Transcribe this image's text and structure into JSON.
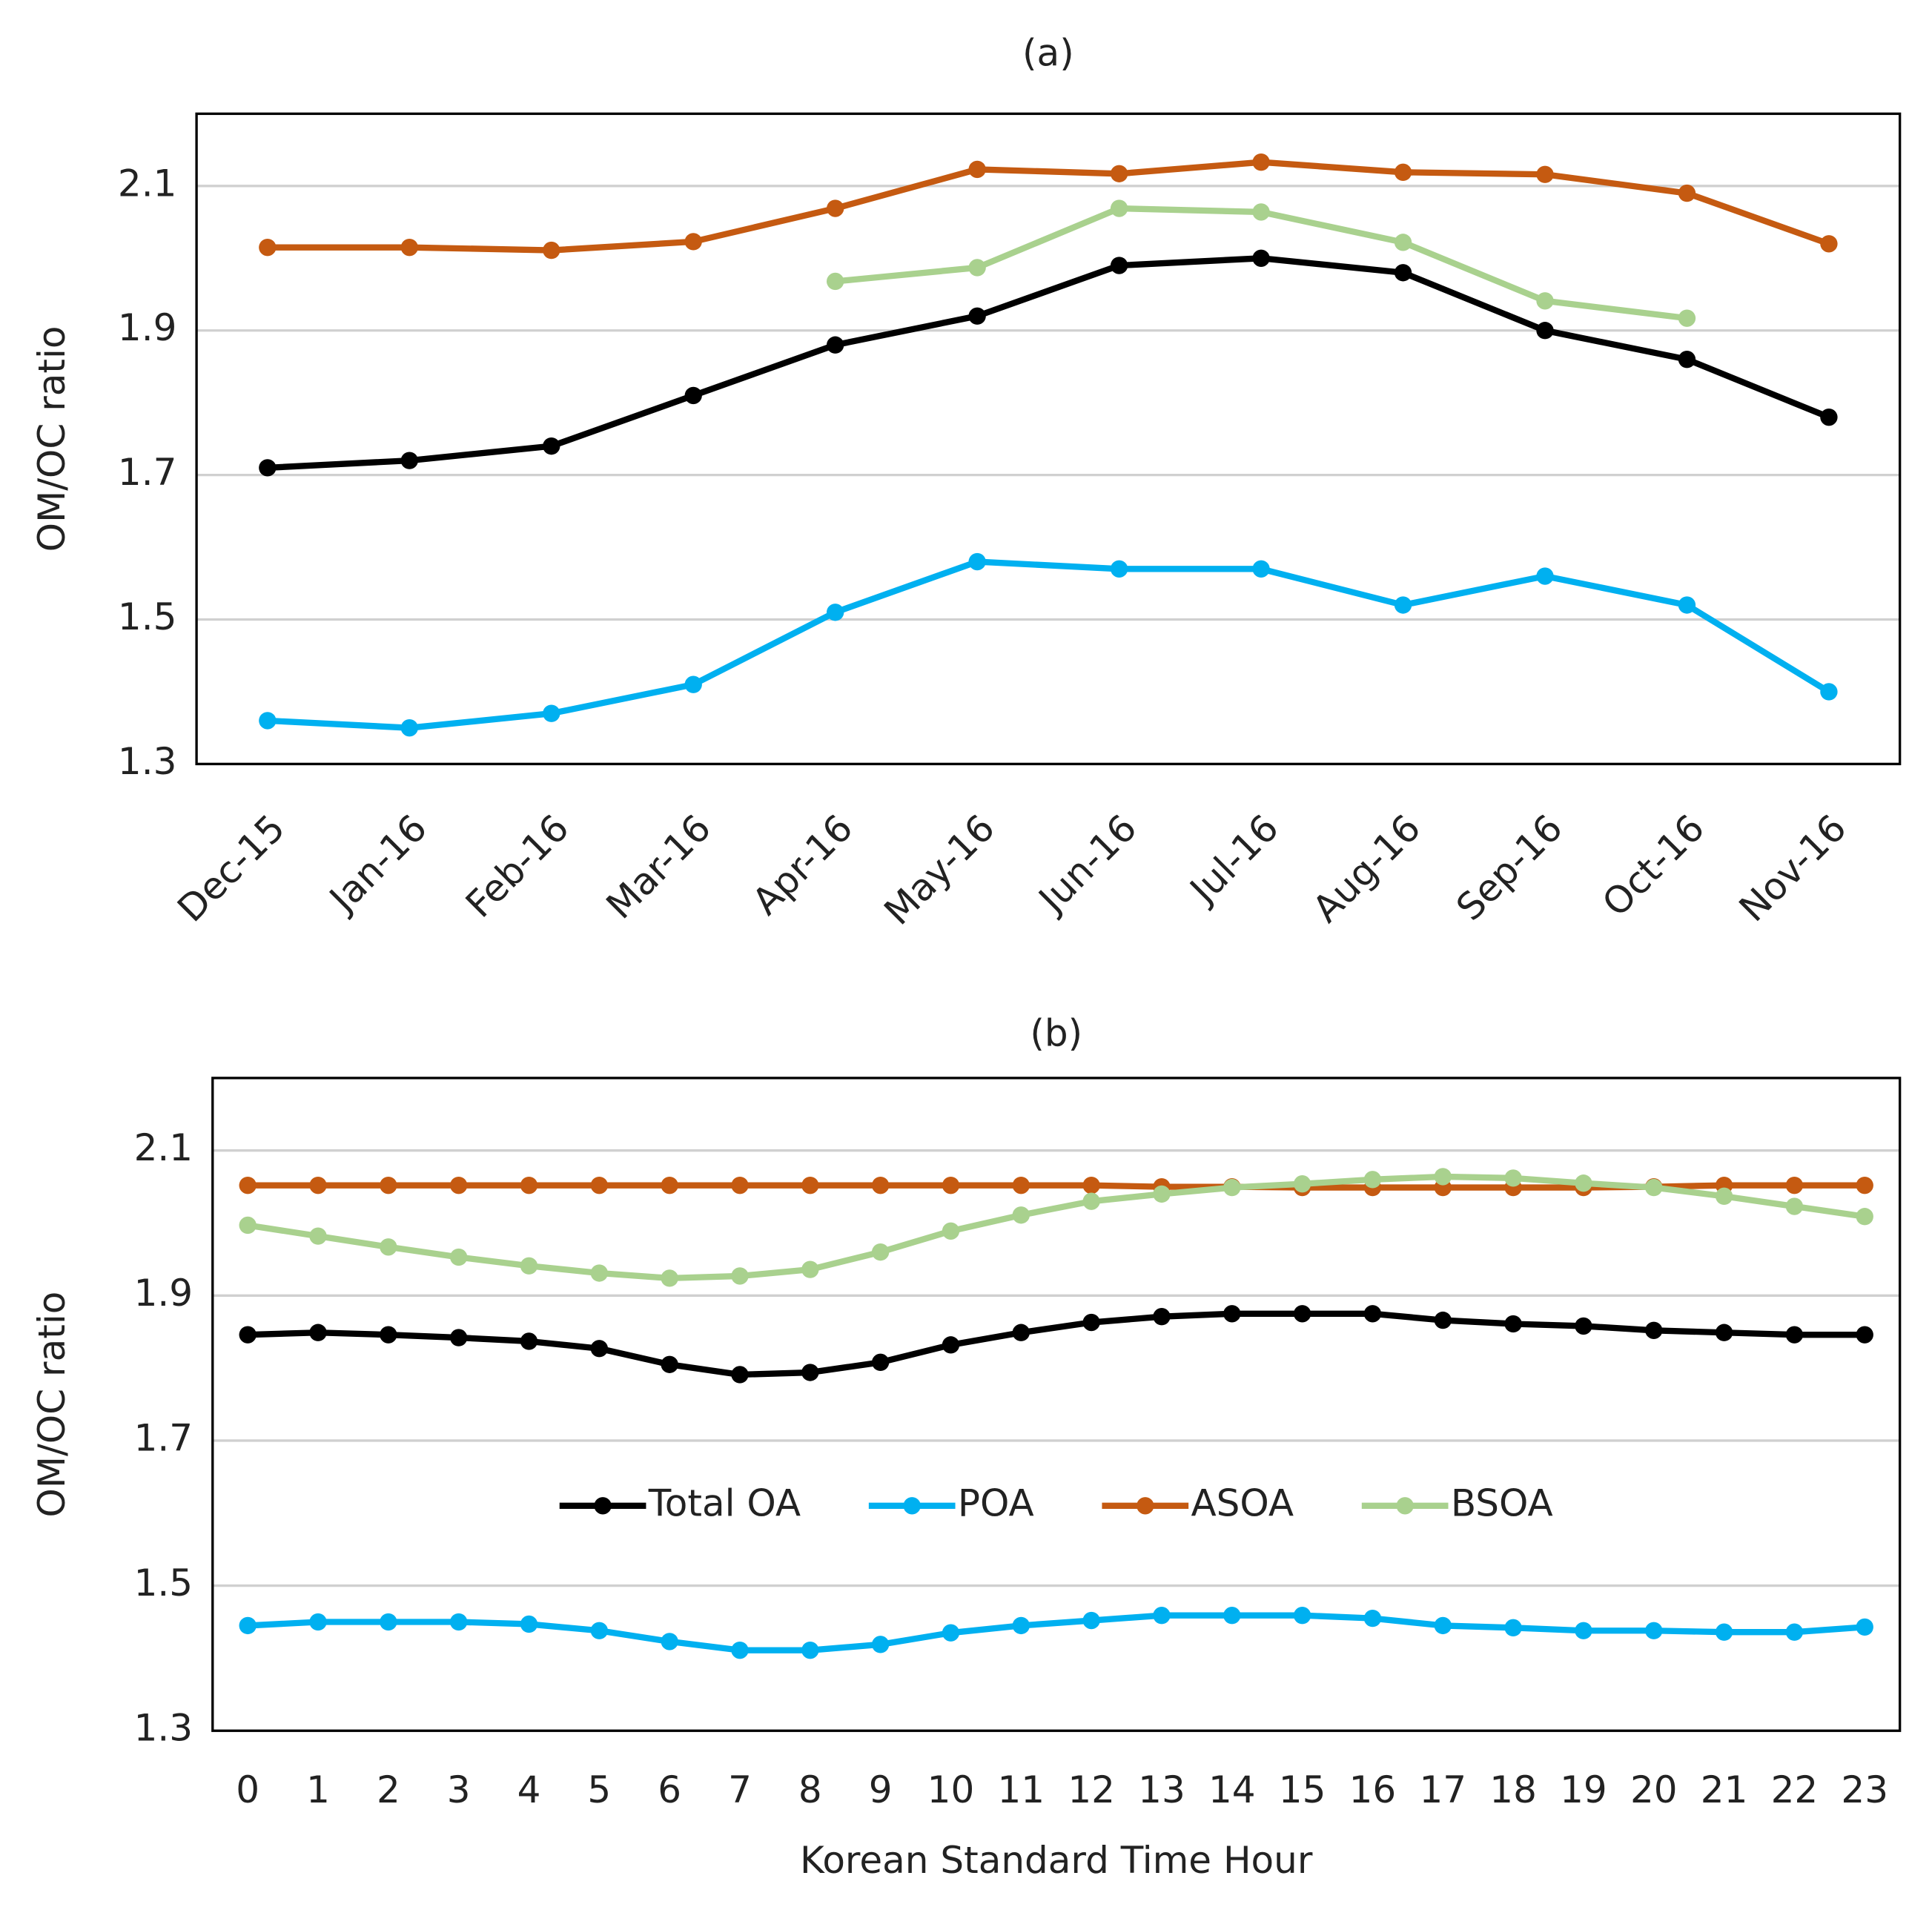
{
  "chart_data": [
    {
      "type": "line",
      "title": "(a)",
      "y_label": "OM/OC ratio",
      "xtick_rotation": 45,
      "categories": [
        "Dec-15",
        "Jan-16",
        "Feb-16",
        "Mar-16",
        "Apr-16",
        "May-16",
        "Jun-16",
        "Jul-16",
        "Aug-16",
        "Sep-16",
        "Oct-16",
        "Nov-16"
      ],
      "ylim": [
        1.3,
        2.2
      ],
      "yticks": [
        1.3,
        1.5,
        1.7,
        1.9,
        2.1
      ],
      "grid": true,
      "series": [
        {
          "color": "#000000",
          "values": [
            1.71,
            1.72,
            1.74,
            1.81,
            1.88,
            1.92,
            1.99,
            2.0,
            1.98,
            1.9,
            1.86,
            1.78
          ]
        },
        {
          "color": "#00b0f0",
          "values": [
            1.36,
            1.35,
            1.37,
            1.41,
            1.51,
            1.58,
            1.57,
            1.57,
            1.52,
            1.56,
            1.52,
            1.4
          ]
        },
        {
          "color": "#c55a11",
          "values": [
            2.015,
            2.015,
            2.011,
            2.023,
            2.069,
            2.123,
            2.117,
            2.133,
            2.119,
            2.116,
            2.09,
            2.02
          ]
        },
        {
          "color": "#a9d18e",
          "values": [
            null,
            null,
            null,
            null,
            1.968,
            1.987,
            2.069,
            2.064,
            2.022,
            1.941,
            1.917,
            null
          ]
        }
      ]
    },
    {
      "type": "line",
      "title": "(b)",
      "y_label": "OM/OC ratio",
      "x_label": "Korean Standard Time Hour",
      "legend": "center",
      "categories": [
        "0",
        "1",
        "2",
        "3",
        "4",
        "5",
        "6",
        "7",
        "8",
        "9",
        "10",
        "11",
        "12",
        "13",
        "14",
        "15",
        "16",
        "17",
        "18",
        "19",
        "20",
        "21",
        "22",
        "23"
      ],
      "ylim": [
        1.3,
        2.2
      ],
      "yticks": [
        1.3,
        1.5,
        1.7,
        1.9,
        2.1
      ],
      "grid": true,
      "series": [
        {
          "name": "Total OA",
          "color": "#000000",
          "values": [
            1.846,
            1.849,
            1.846,
            1.842,
            1.837,
            1.827,
            1.805,
            1.791,
            1.794,
            1.808,
            1.832,
            1.849,
            1.863,
            1.871,
            1.875,
            1.875,
            1.875,
            1.866,
            1.861,
            1.858,
            1.852,
            1.849,
            1.846,
            1.846
          ]
        },
        {
          "name": "POA",
          "color": "#00b0f0",
          "values": [
            1.445,
            1.45,
            1.45,
            1.45,
            1.447,
            1.438,
            1.423,
            1.411,
            1.411,
            1.419,
            1.435,
            1.445,
            1.452,
            1.459,
            1.459,
            1.459,
            1.455,
            1.445,
            1.442,
            1.438,
            1.438,
            1.436,
            1.436,
            1.443
          ]
        },
        {
          "name": "ASOA",
          "color": "#c55a11",
          "values": [
            2.052,
            2.052,
            2.052,
            2.052,
            2.052,
            2.052,
            2.052,
            2.052,
            2.052,
            2.052,
            2.052,
            2.052,
            2.052,
            2.05,
            2.05,
            2.049,
            2.049,
            2.049,
            2.049,
            2.049,
            2.05,
            2.052,
            2.052,
            2.052
          ]
        },
        {
          "name": "BSOA",
          "color": "#a9d18e",
          "values": [
            1.997,
            1.982,
            1.967,
            1.953,
            1.941,
            1.931,
            1.924,
            1.927,
            1.936,
            1.96,
            1.989,
            2.011,
            2.03,
            2.04,
            2.049,
            2.054,
            2.06,
            2.064,
            2.062,
            2.055,
            2.049,
            2.037,
            2.023,
            2.009
          ]
        }
      ]
    }
  ]
}
